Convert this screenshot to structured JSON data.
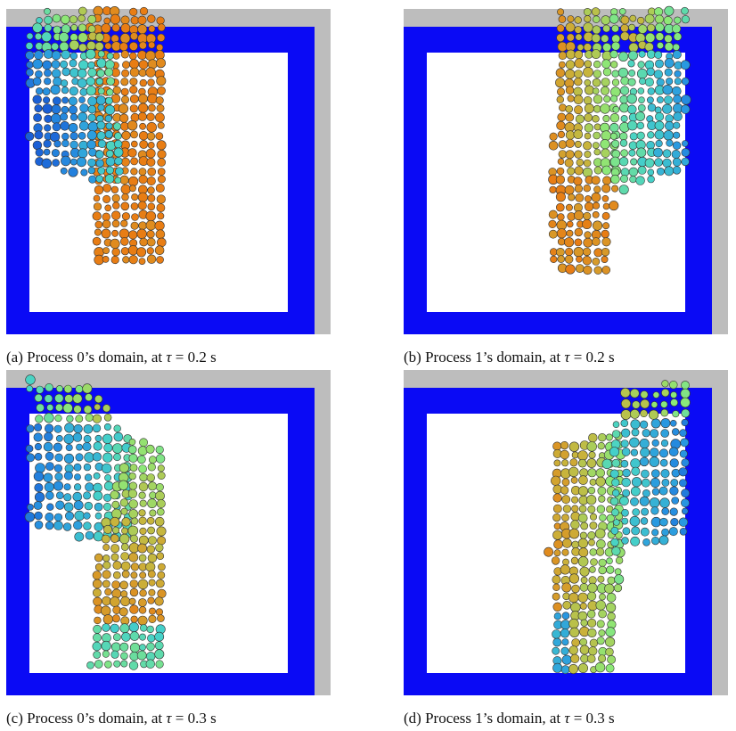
{
  "captions": [
    {
      "prefix": "(a) Process 0’s domain, at ",
      "symbol": "τ",
      "suffix": " = 0.2 s"
    },
    {
      "prefix": "(b) Process 1’s domain, at ",
      "symbol": "τ",
      "suffix": " = 0.2 s"
    },
    {
      "prefix": "(c) Process 0’s domain, at ",
      "symbol": "τ",
      "suffix": " = 0.3 s"
    },
    {
      "prefix": "(d) Process 1’s domain, at ",
      "symbol": "τ",
      "suffix": " = 0.3 s"
    }
  ]
}
